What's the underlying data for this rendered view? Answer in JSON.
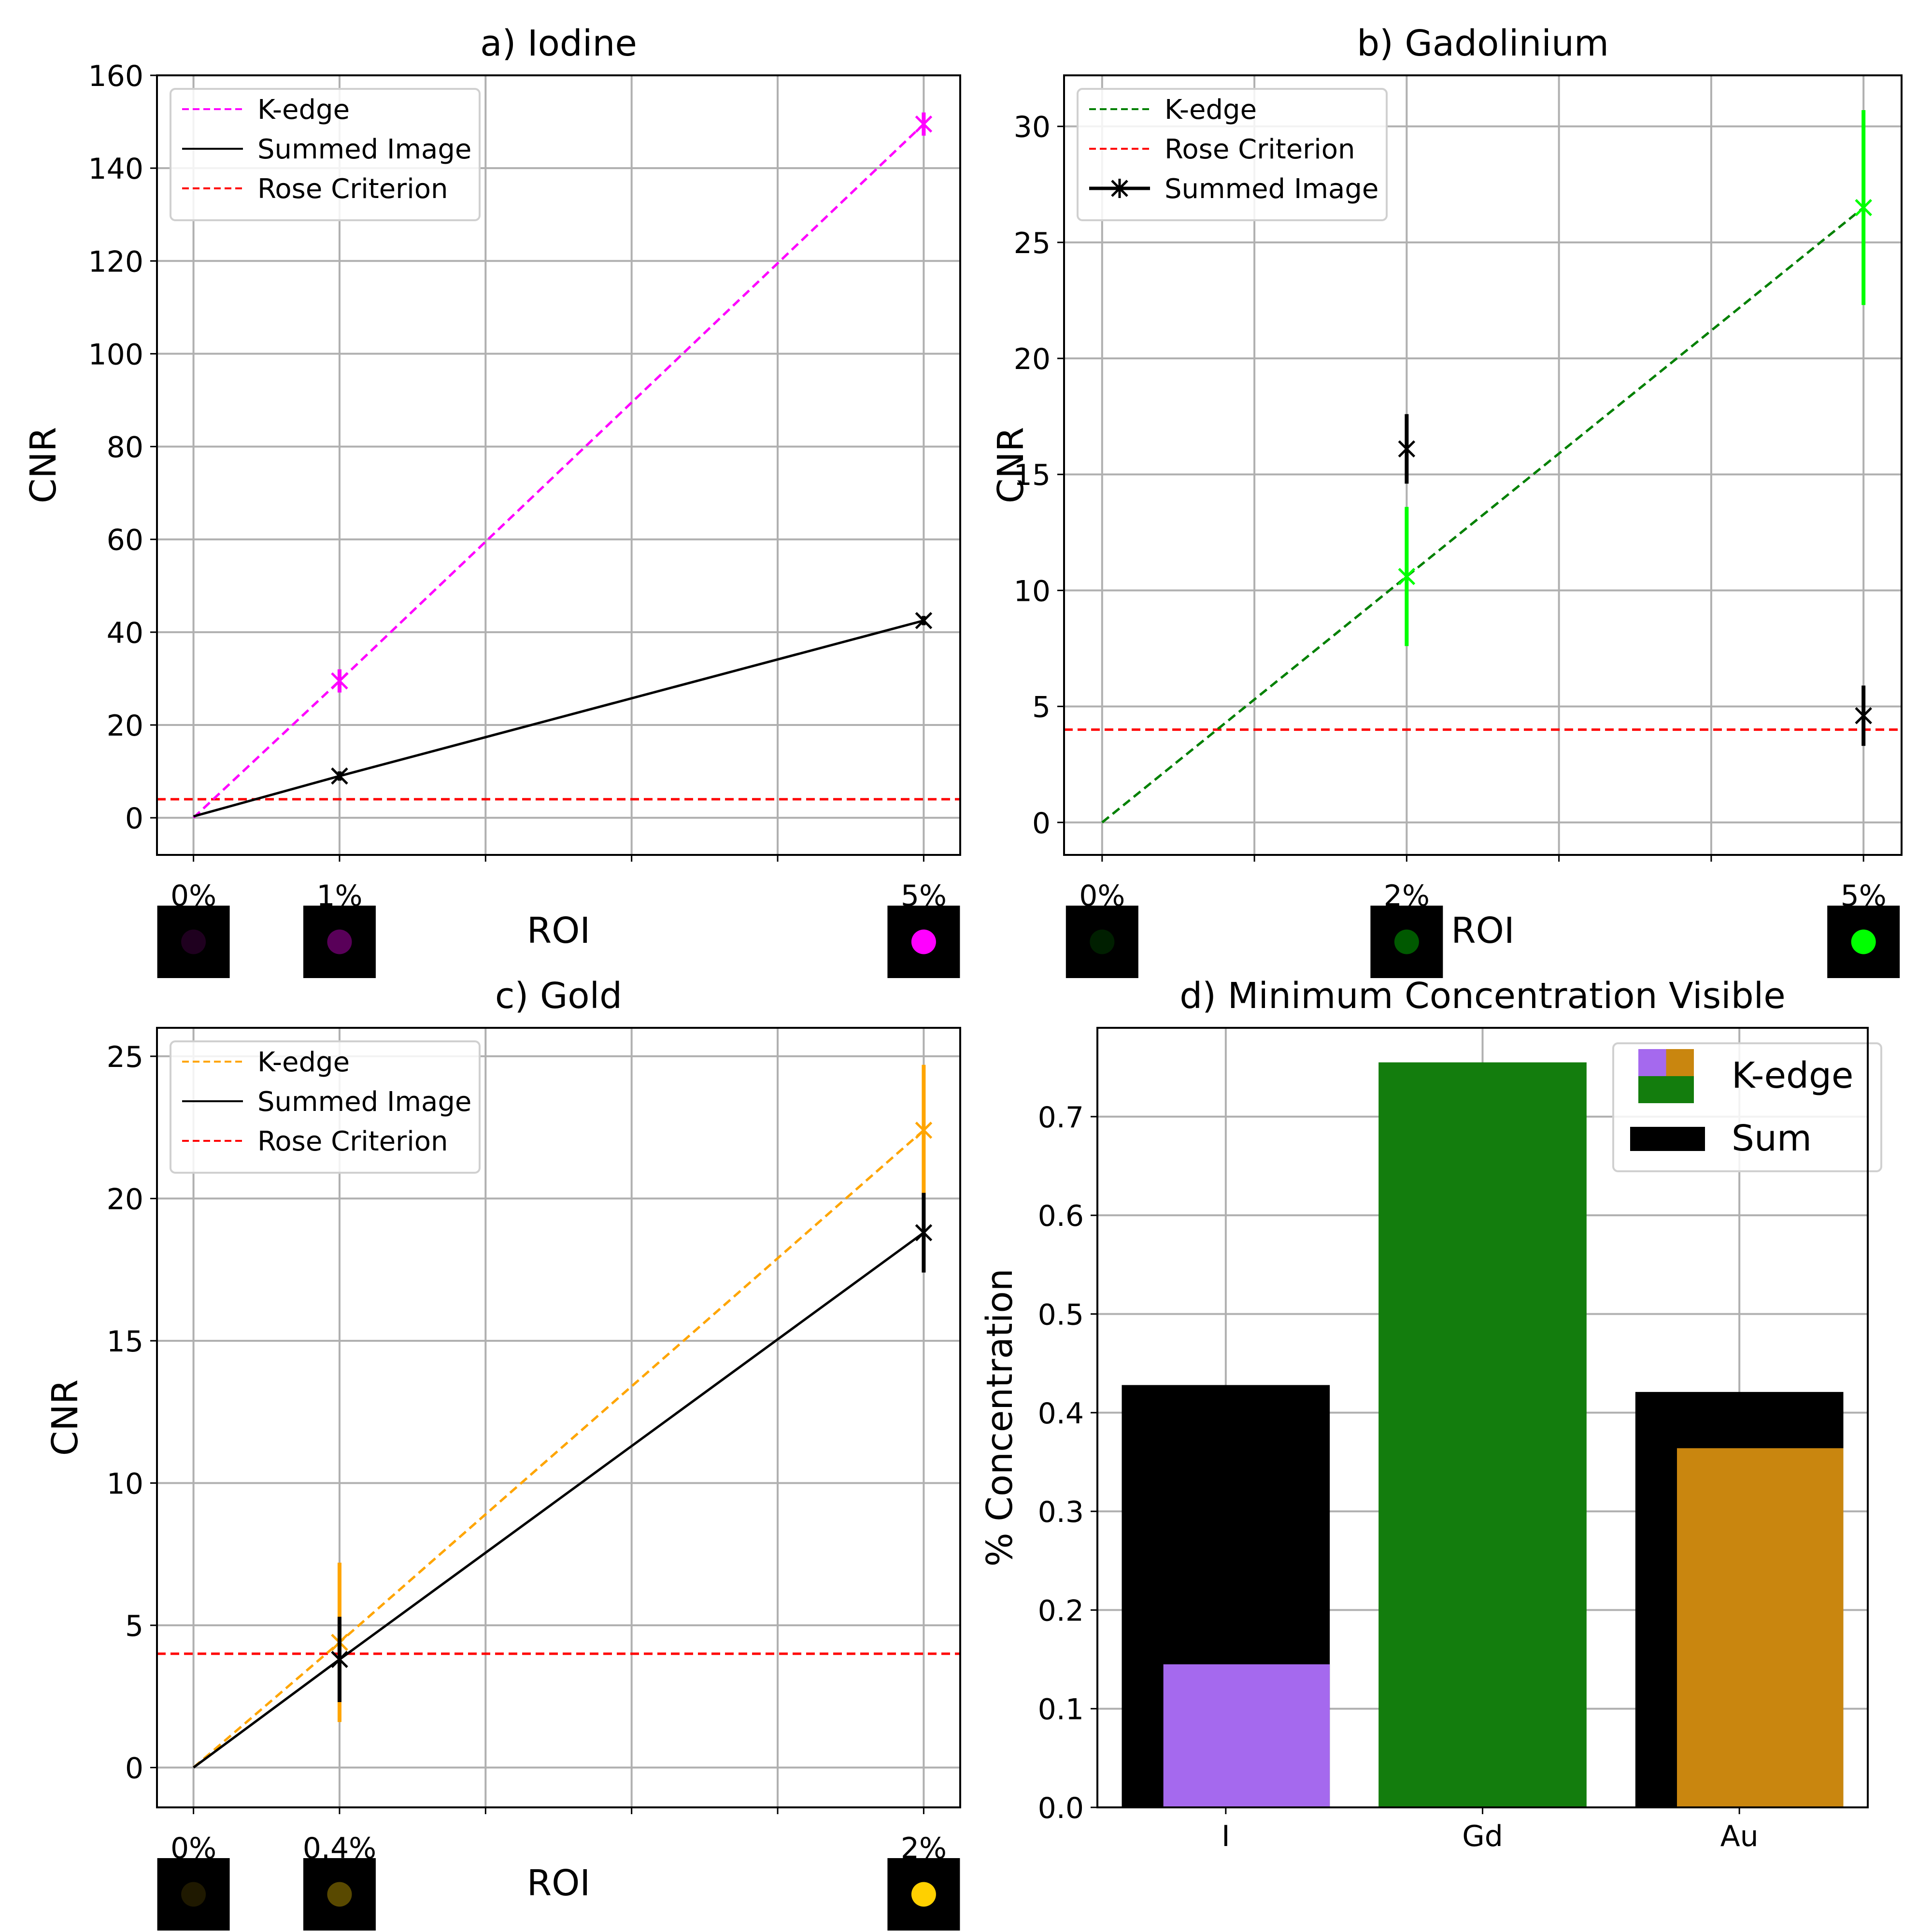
{
  "chart_data": [
    {
      "type": "line",
      "title": "a) Iodine",
      "xlabel": "ROI",
      "ylabel": "CNR",
      "x": [
        0,
        1,
        5
      ],
      "xticklabels": [
        "0%",
        "1%",
        "5%"
      ],
      "xlim": [
        -0.25,
        5.25
      ],
      "ylim": [
        -8,
        160
      ],
      "yticks": [
        0,
        20,
        40,
        60,
        80,
        100,
        120,
        140,
        160
      ],
      "grid": true,
      "legend": {
        "position": "upper-left",
        "entries": [
          "K-edge",
          "Summed Image",
          "Rose Criterion"
        ]
      },
      "series": [
        {
          "name": "K-edge",
          "color": "#ff00ff",
          "style": "dashed",
          "values": [
            0,
            29.5,
            149.5
          ],
          "errors": [
            0,
            2.5,
            2.5
          ],
          "markers": [
            false,
            true,
            true
          ]
        },
        {
          "name": "Summed Image",
          "color": "#000000",
          "style": "solid",
          "values": [
            0.3,
            9,
            42.5
          ],
          "errors": [
            0,
            1,
            1
          ],
          "markers": [
            false,
            true,
            true
          ]
        }
      ],
      "hlines": [
        {
          "name": "Rose Criterion",
          "value": 4,
          "color": "#ff0000",
          "style": "dashed"
        }
      ],
      "thumbnails": [
        "#ff00ff",
        "#ff00ff",
        "#ff00ff"
      ]
    },
    {
      "type": "line",
      "title": "b) Gadolinium",
      "xlabel": "ROI",
      "ylabel": "CNR",
      "x": [
        0,
        2,
        5
      ],
      "xticklabels": [
        "0%",
        "2%",
        "5%"
      ],
      "xlim": [
        -0.25,
        5.25
      ],
      "ylim": [
        -1.4,
        32.2
      ],
      "yticks": [
        0,
        5,
        10,
        15,
        20,
        25,
        30
      ],
      "grid": true,
      "legend": {
        "position": "upper-left",
        "entries": [
          "K-edge",
          "Rose Criterion",
          "Summed Image"
        ]
      },
      "series": [
        {
          "name": "K-edge",
          "color": "#008000",
          "style": "dashed",
          "values": [
            0,
            10.6,
            26.5
          ],
          "errors": [
            0,
            3,
            4.2
          ],
          "markers": [
            false,
            true,
            true
          ],
          "marker_color": "#00ff00"
        },
        {
          "name": "Summed Image",
          "color": "#000000",
          "style": "none",
          "values": [
            null,
            16.1,
            4.6
          ],
          "errors": [
            0,
            1.5,
            1.3
          ],
          "markers": [
            false,
            true,
            true
          ]
        }
      ],
      "hlines": [
        {
          "name": "Rose Criterion",
          "value": 4,
          "color": "#ff0000",
          "style": "dashed"
        }
      ],
      "thumbnails": [
        "#00ff00",
        "#00ff00",
        "#00ff00"
      ]
    },
    {
      "type": "line",
      "title": "c) Gold",
      "xlabel": "ROI",
      "ylabel": "CNR",
      "x": [
        0,
        0.4,
        2
      ],
      "xticklabels": [
        "0%",
        "0.4%",
        "2%"
      ],
      "xlim": [
        -0.1,
        2.1
      ],
      "ylim": [
        -1.4,
        26
      ],
      "yticks": [
        0,
        5,
        10,
        15,
        20,
        25
      ],
      "grid": true,
      "legend": {
        "position": "upper-left",
        "entries": [
          "K-edge",
          "Summed Image",
          "Rose Criterion"
        ]
      },
      "series": [
        {
          "name": "K-edge",
          "color": "#ffa500",
          "style": "dashed",
          "values": [
            0,
            4.4,
            22.4
          ],
          "errors": [
            0,
            2.8,
            2.3
          ],
          "markers": [
            false,
            true,
            true
          ]
        },
        {
          "name": "Summed Image",
          "color": "#000000",
          "style": "solid",
          "values": [
            0,
            3.8,
            18.8
          ],
          "errors": [
            0,
            1.5,
            1.4
          ],
          "markers": [
            false,
            true,
            true
          ]
        }
      ],
      "hlines": [
        {
          "name": "Rose Criterion",
          "value": 4,
          "color": "#ff0000",
          "style": "dashed"
        }
      ],
      "thumbnails": [
        "#ffd000",
        "#ffd000",
        "#ffd000"
      ]
    },
    {
      "type": "bar",
      "title": "d) Minimum Concentration Visible",
      "ylabel": "% Concentration",
      "categories": [
        "I",
        "Gd",
        "Au"
      ],
      "ylim": [
        0,
        0.79
      ],
      "yticks": [
        "0.0",
        "0.1",
        "0.2",
        "0.3",
        "0.4",
        "0.5",
        "0.6",
        "0.7"
      ],
      "grid": true,
      "legend": {
        "position": "upper-right",
        "entries": [
          "K-edge",
          "Sum"
        ]
      },
      "series": [
        {
          "name": "Sum",
          "color": "#000000",
          "values": [
            0.428,
            null,
            0.421
          ]
        },
        {
          "name": "K-edge",
          "colors": [
            "#a569ee",
            "#137d0d",
            "#c9860f"
          ],
          "values": [
            0.145,
            0.755,
            0.364
          ]
        }
      ]
    }
  ]
}
